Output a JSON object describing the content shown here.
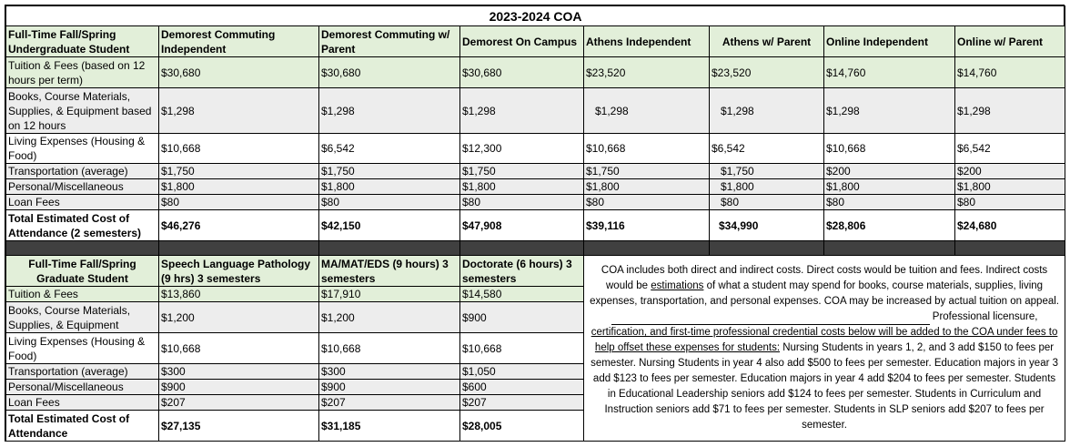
{
  "title": "2023-2024 COA",
  "undergrad": {
    "header_label": "Full-Time Fall/Spring Undergraduate Student",
    "columns": [
      "Demorest Commuting Independent",
      "Demorest Commuting w/ Parent",
      "Demorest On Campus",
      "Athens Independent",
      "Athens w/ Parent",
      "Online Independent",
      "Online w/ Parent"
    ],
    "rows": [
      {
        "label": "Tuition & Fees (based on 12 hours per term)",
        "values": [
          "$30,680",
          "$30,680",
          "$30,680",
          "$23,520",
          "$23,520",
          "$14,760",
          "$14,760"
        ]
      },
      {
        "label": "Books, Course Materials, Supplies, & Equipment based on 12 hours",
        "values": [
          "$1,298",
          "$1,298",
          "$1,298",
          "$1,298",
          "$1,298",
          "$1,298",
          "$1,298"
        ]
      },
      {
        "label": "Living Expenses (Housing & Food)",
        "values": [
          "$10,668",
          "$6,542",
          "$12,300",
          "$10,668",
          "$6,542",
          "$10,668",
          "$6,542"
        ]
      },
      {
        "label": "Transportation (average)",
        "values": [
          "$1,750",
          "$1,750",
          "$1,750",
          "$1,750",
          "$1,750",
          "$200",
          "$200"
        ]
      },
      {
        "label": "Personal/Miscellaneous",
        "values": [
          "$1,800",
          "$1,800",
          "$1,800",
          "$1,800",
          "$1,800",
          "$1,800",
          "$1,800"
        ]
      },
      {
        "label": "Loan Fees",
        "values": [
          "$80",
          "$80",
          "$80",
          "$80",
          "$80",
          "$80",
          "$80"
        ]
      }
    ],
    "total": {
      "label": "Total Estimated Cost of Attendance (2 semesters)",
      "values": [
        "$46,276",
        "$42,150",
        "$47,908",
        "$39,116",
        "$34,990",
        "$28,806",
        "$24,680"
      ]
    }
  },
  "grad": {
    "header_label": "Full-Time Fall/Spring Graduate Student",
    "columns": [
      "Speech Language Pathology (9 hrs) 3 semesters",
      "MA/MAT/EDS (9 hours) 3 semesters",
      "Doctorate (6 hours) 3 semesters"
    ],
    "rows": [
      {
        "label": "Tuition & Fees",
        "values": [
          "$13,860",
          "$17,910",
          "$14,580"
        ]
      },
      {
        "label": "Books, Course Materials, Supplies, & Equipment",
        "values": [
          "$1,200",
          "$1,200",
          "$900"
        ]
      },
      {
        "label": "Living Expenses (Housing & Food)",
        "values": [
          "$10,668",
          "$10,668",
          "$10,668"
        ]
      },
      {
        "label": "Transportation (average)",
        "values": [
          "$300",
          "$300",
          "$1,050"
        ]
      },
      {
        "label": "Personal/Miscellaneous",
        "values": [
          "$900",
          "$900",
          "$600"
        ]
      },
      {
        "label": "Loan Fees",
        "values": [
          "$207",
          "$207",
          "$207"
        ]
      }
    ],
    "total": {
      "label": "Total Estimated Cost of Attendance",
      "values": [
        "$27,135",
        "$31,185",
        "$28,005"
      ]
    }
  },
  "note": {
    "part1": "COA includes both direct and indirect costs. Direct costs would be tuition and fees. Indirect costs would be ",
    "part1_underlined": "estimations",
    "part2": " of what a student may spend for books, course materials, supplies, living expenses, transportation, and personal expenses. COA may be increased by actual tuition on appeal.",
    "part3": "Professional licensure,",
    "part4_underlined": "certification, and first-time professional credential costs below will be added to the COA under fees to help offset these expenses for students:",
    "part5": " Nursing Students in years 1, 2, and 3 add $150 to fees per semester. Nursing Students in year 4 also add $500 to fees per semester. Education majors in year 3 add $123 to fees per semester. Education majors in year 4 add $204 to fees per semester. Students in Educational Leadership seniors add $124 to fees per semester. Students in Curriculum and Instruction seniors add $71 to fees per semester. Students in SLP seniors add $207 to fees per semester."
  }
}
